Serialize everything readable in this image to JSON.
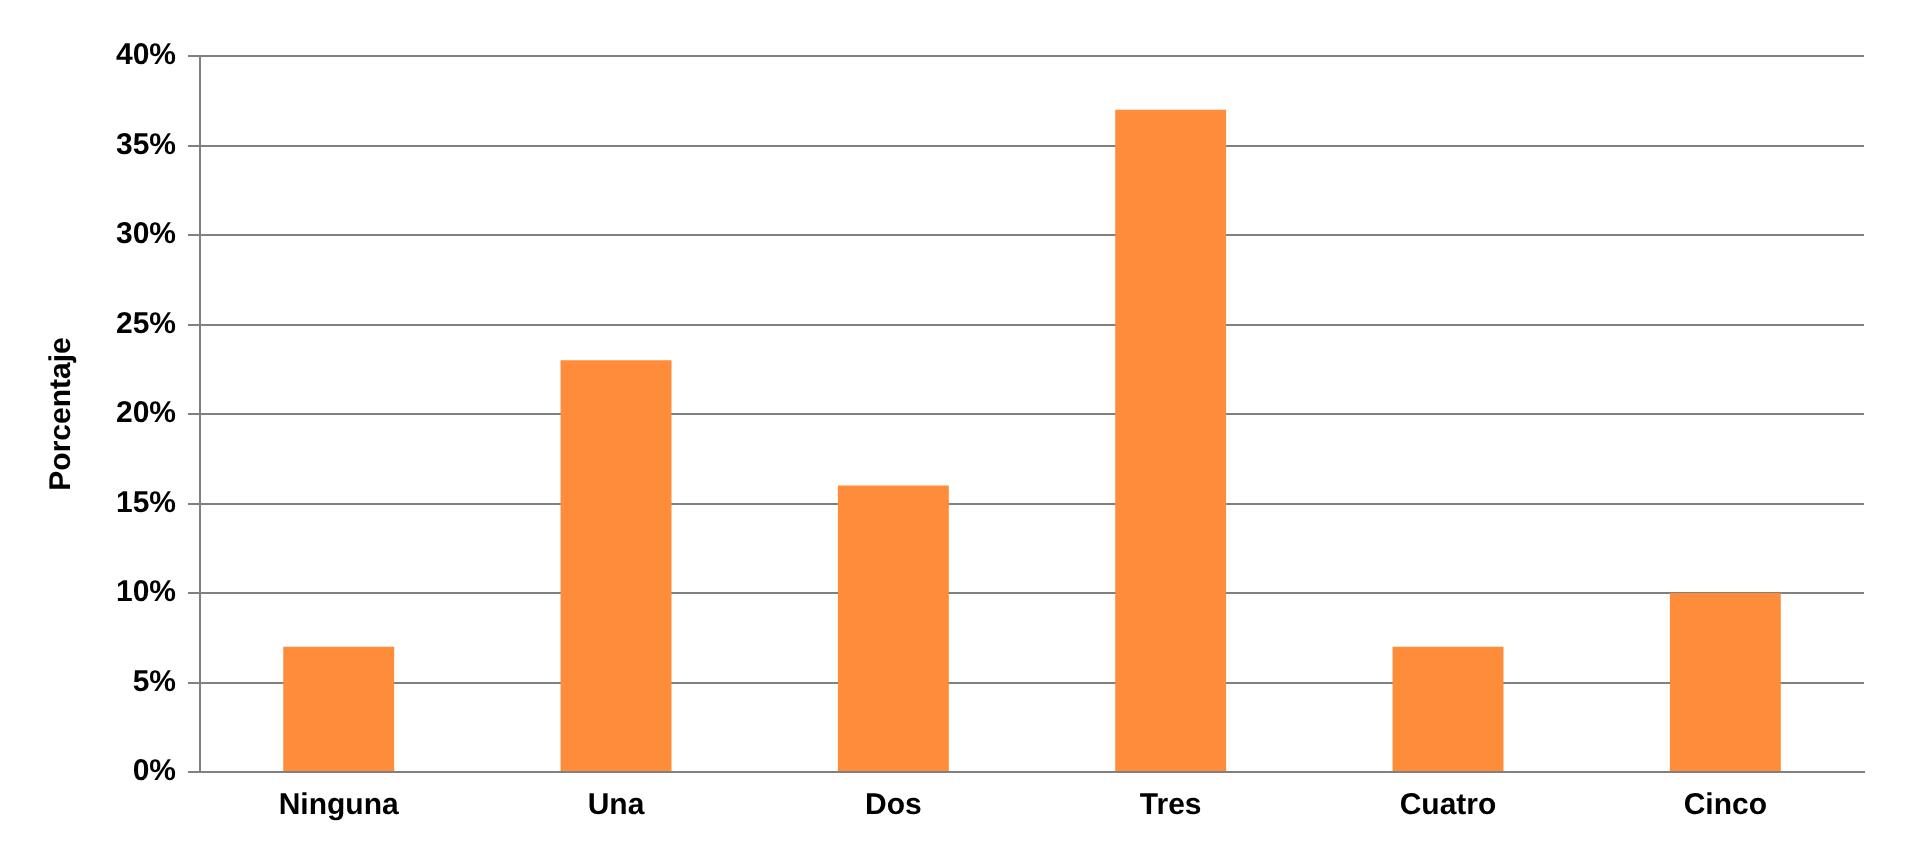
{
  "chart_data": {
    "type": "bar",
    "ylabel": "Porcentaje",
    "categories": [
      "Ninguna",
      "Una",
      "Dos",
      "Tres",
      "Cuatro",
      "Cinco"
    ],
    "values": [
      7,
      23,
      16,
      37,
      7,
      10
    ],
    "color": "#ff8c3a",
    "ylim": [
      0,
      40
    ],
    "yticks": [
      {
        "value": 0,
        "label": "0%"
      },
      {
        "value": 5,
        "label": "5%"
      },
      {
        "value": 10,
        "label": "10%"
      },
      {
        "value": 15,
        "label": "15%"
      },
      {
        "value": 20,
        "label": "20%"
      },
      {
        "value": 25,
        "label": "25%"
      },
      {
        "value": 30,
        "label": "30%"
      },
      {
        "value": 35,
        "label": "35%"
      },
      {
        "value": 40,
        "label": "40%"
      }
    ],
    "grid": "y",
    "legend": false
  }
}
